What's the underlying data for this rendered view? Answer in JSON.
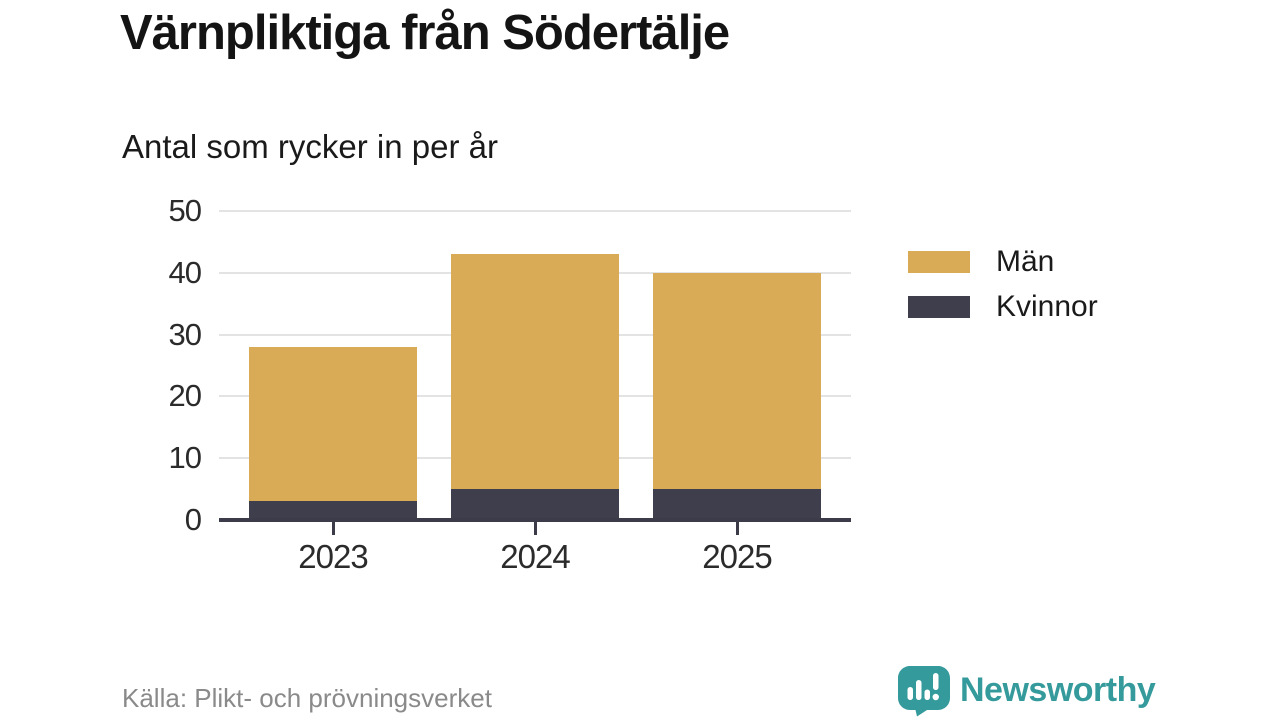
{
  "title": "Värnpliktiga från Södertälje",
  "subtitle": "Antal som rycker in per år",
  "source": "Källa: Plikt- och prövningsverket",
  "brand": {
    "name": "Newsworthy",
    "color": "#359a9b"
  },
  "colors": {
    "men": "#d9ab57",
    "women": "#3f3e4d",
    "axis": "#3c3b49",
    "gridline": "#e3e3e3",
    "text": "#1a1a1a",
    "source_text": "#8a8a8a",
    "brand_teal": "#359a9b"
  },
  "legend": [
    {
      "label": "Män",
      "color": "#d9ab57"
    },
    {
      "label": "Kvinnor",
      "color": "#3f3e4d"
    }
  ],
  "chart_data": {
    "type": "bar",
    "stacked": true,
    "title": "Värnpliktiga från Södertälje",
    "subtitle": "Antal som rycker in per år",
    "categories": [
      "2023",
      "2024",
      "2025"
    ],
    "series": [
      {
        "name": "Kvinnor",
        "color": "#3f3e4d",
        "values": [
          3,
          5,
          5
        ]
      },
      {
        "name": "Män",
        "color": "#d9ab57",
        "values": [
          25,
          38,
          35
        ]
      }
    ],
    "totals": [
      28,
      43,
      40
    ],
    "xlabel": "",
    "ylabel": "Antal som rycker in per år",
    "ylim": [
      0,
      50
    ],
    "yticks": [
      0,
      10,
      20,
      30,
      40,
      50
    ],
    "grid": true,
    "legend_position": "right",
    "source": "Källa: Plikt- och prövningsverket"
  }
}
